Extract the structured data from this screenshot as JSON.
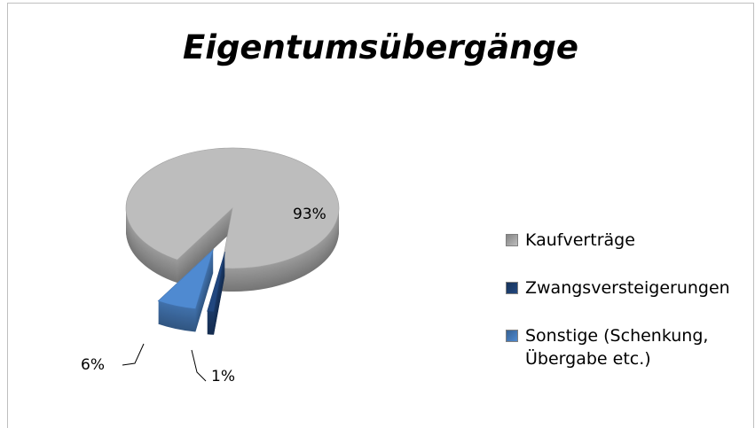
{
  "chart_data": {
    "type": "pie",
    "title": "Eigentumsübergänge",
    "categories": [
      "Kaufverträge",
      "Zwangsversteigerungen",
      "Sonstige (Schenkung, Übergabe etc.)"
    ],
    "values": [
      93,
      1,
      6
    ],
    "value_labels": [
      "93%",
      "1%",
      "6%"
    ],
    "colors": [
      "#bdbdbd",
      "#21477f",
      "#4f8ad1"
    ],
    "legend": "right"
  }
}
